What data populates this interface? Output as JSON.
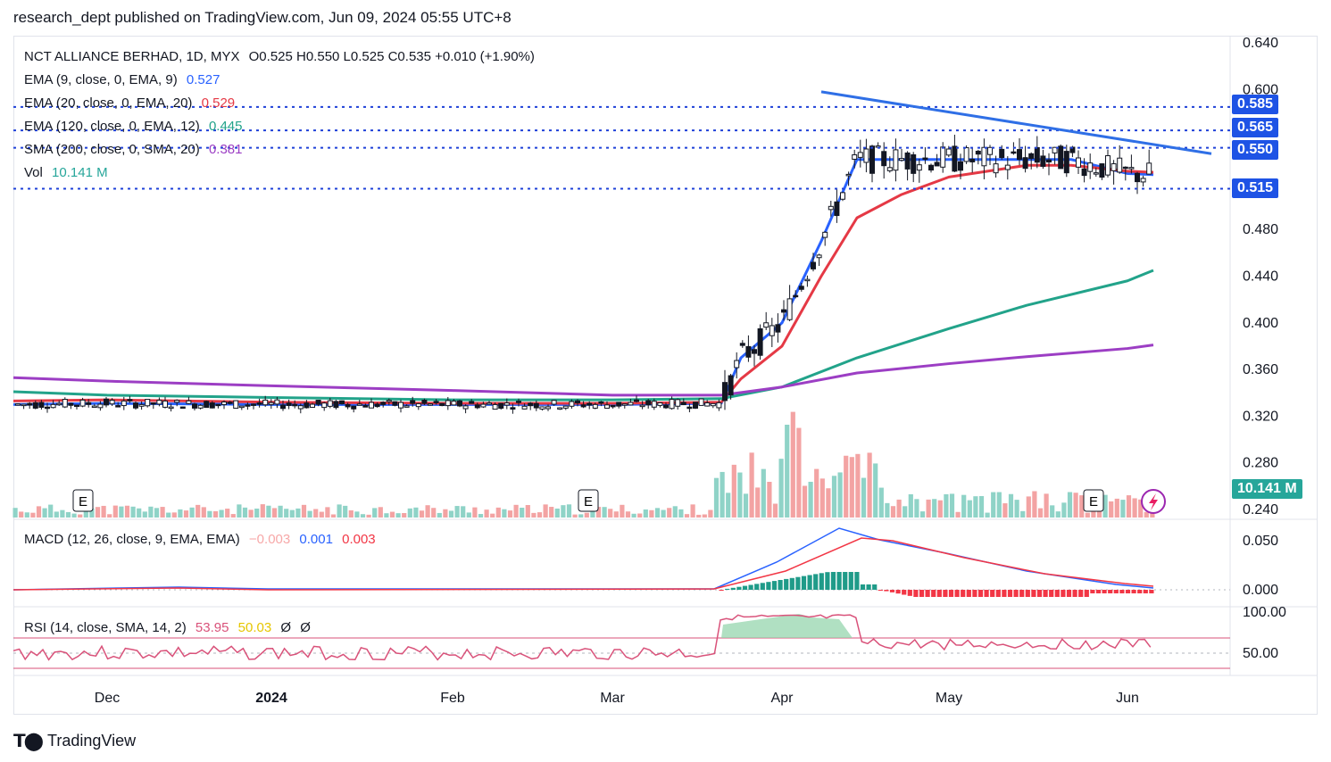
{
  "header": {
    "published": "research_dept published on TradingView.com, Jun 09, 2024 05:55 UTC+8"
  },
  "legend": {
    "symbol": "NCT ALLIANCE BERHAD, 1D, MYX",
    "ohlc": "O0.525  H0.550  L0.525  C0.535  +0.010 (+1.90%)",
    "ema9_label": "EMA (9, close, 0, EMA, 9)",
    "ema9_value": "0.527",
    "ema20_label": "EMA (20, close, 0, EMA, 20)",
    "ema20_value": "0.529",
    "ema120_label": "EMA (120, close, 0, EMA, 12)",
    "ema120_value": "0.445",
    "sma200_label": "SMA (200, close, 0, SMA, 20)",
    "sma200_value": "0.381",
    "vol_label": "Vol",
    "vol_value": "10.141 M",
    "macd_label": "MACD (12, 26, close, 9, EMA, EMA)",
    "macd_hist": "−0.003",
    "macd_value": "0.001",
    "macd_signal": "0.003",
    "rsi_label": "RSI (14, close, SMA, 14, 2)",
    "rsi_value": "53.95",
    "rsi_ma": "50.03",
    "rsi_extra1": "Ø",
    "rsi_extra2": "Ø"
  },
  "badges": {
    "level_585": "0.585",
    "level_565": "0.565",
    "level_550": "0.550",
    "level_515": "0.515",
    "volume": "10.141 M"
  },
  "colors": {
    "up": "#26a69a",
    "down": "#ef5350",
    "ema9": "#2962ff",
    "ema20": "#e53945",
    "ema120": "#22a38a",
    "sma200": "#9c3ec4",
    "level_line": "#1e40d8",
    "trendline": "#2f6fe6",
    "badge_bg": "#1e53e5",
    "macd_line": "#2962ff",
    "signal_line": "#f23645",
    "rsi_line": "#d9527a"
  },
  "footer": {
    "brand": "TradingView"
  },
  "chart_data": {
    "type": "line",
    "title": "NCT ALLIANCE BERHAD, 1D, MYX",
    "price_axis_ticks": [
      "0.640",
      "0.600",
      "0.480",
      "0.440",
      "0.400",
      "0.360",
      "0.320",
      "0.280",
      "0.240"
    ],
    "macd_axis_ticks": [
      "0.050",
      "0.000"
    ],
    "rsi_axis_ticks": [
      "100.00",
      "50.00"
    ],
    "time_axis_ticks": [
      "Dec",
      "2024",
      "Feb",
      "Mar",
      "Apr",
      "May",
      "Jun"
    ],
    "ylim": [
      0.235,
      0.645
    ],
    "earnings_markers": [
      "E",
      "E",
      "E"
    ],
    "horizontal_levels": [
      0.585,
      0.565,
      0.55,
      0.515
    ],
    "trendline": {
      "start": {
        "x": "Apr 08",
        "y": 0.598
      },
      "end": {
        "x": "Jun 14",
        "y": 0.545
      }
    },
    "series": [
      {
        "name": "EMA (9, close, 0, EMA, 9)",
        "x": [
          "Nov 15",
          "Dec",
          "2024",
          "Feb",
          "Mar",
          "Mar 20",
          "Mar 25",
          "Apr 01",
          "Apr 08",
          "Apr 15",
          "May",
          "May 15",
          "May 23",
          "Jun",
          "Jun 07"
        ],
        "values": [
          0.33,
          0.331,
          0.33,
          0.33,
          0.33,
          0.331,
          0.37,
          0.4,
          0.47,
          0.54,
          0.54,
          0.54,
          0.54,
          0.528,
          0.527
        ]
      },
      {
        "name": "EMA (20, close, 0, EMA, 20)",
        "x": [
          "Nov 15",
          "Dec",
          "2024",
          "Feb",
          "Mar",
          "Mar 20",
          "Mar 25",
          "Apr 01",
          "Apr 08",
          "Apr 15",
          "Apr 22",
          "May",
          "May 15",
          "May 23",
          "Jun",
          "Jun 07"
        ],
        "values": [
          0.333,
          0.334,
          0.332,
          0.331,
          0.331,
          0.332,
          0.352,
          0.38,
          0.44,
          0.49,
          0.51,
          0.525,
          0.535,
          0.535,
          0.53,
          0.529
        ]
      },
      {
        "name": "EMA (120, close, 0, EMA, 12)",
        "x": [
          "Nov 15",
          "Dec",
          "2024",
          "Feb",
          "Mar",
          "Mar 20",
          "Apr 01",
          "Apr 15",
          "May",
          "May 15",
          "Jun",
          "Jun 07"
        ],
        "values": [
          0.341,
          0.338,
          0.336,
          0.334,
          0.334,
          0.335,
          0.345,
          0.37,
          0.395,
          0.415,
          0.436,
          0.445
        ]
      },
      {
        "name": "SMA (200, close, 0, SMA, 20)",
        "x": [
          "Nov 15",
          "Dec",
          "2024",
          "Feb",
          "Mar",
          "Mar 20",
          "Apr 01",
          "Apr 15",
          "May",
          "May 15",
          "Jun",
          "Jun 07"
        ],
        "values": [
          0.353,
          0.35,
          0.346,
          0.342,
          0.338,
          0.338,
          0.345,
          0.357,
          0.365,
          0.371,
          0.378,
          0.381
        ]
      }
    ]
  }
}
